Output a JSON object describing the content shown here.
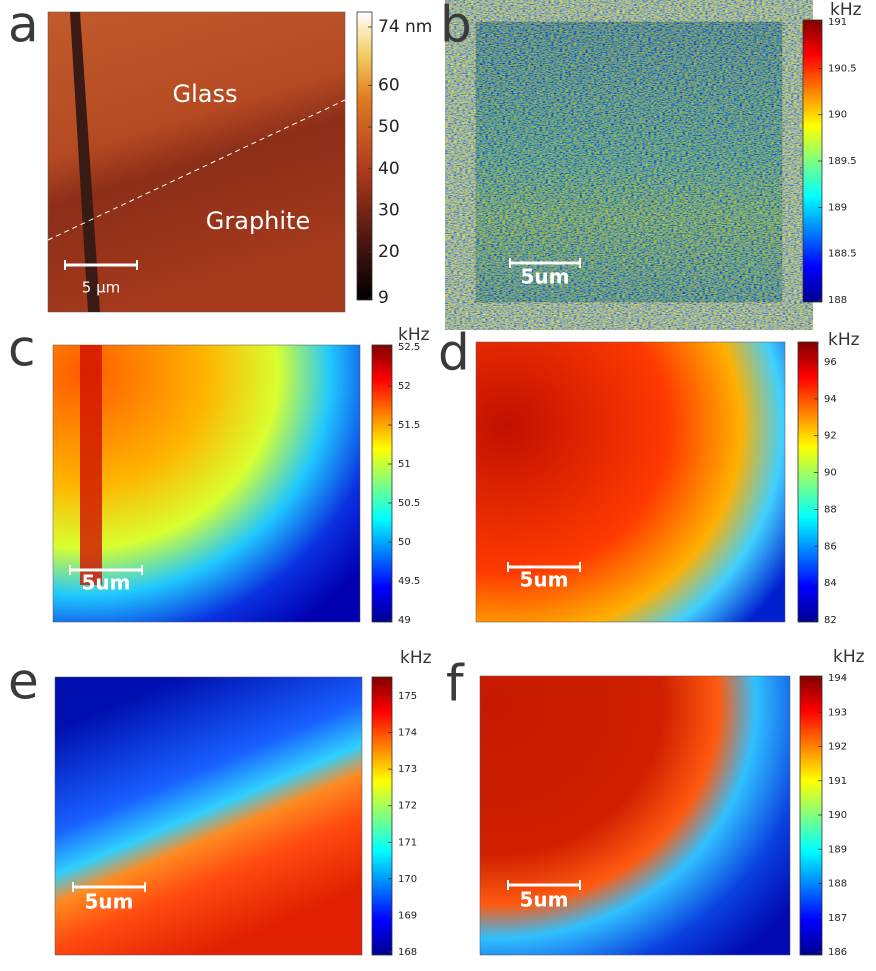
{
  "panels": [
    {
      "label": "a",
      "scalebar": "5 µm",
      "annotations": [
        "Glass",
        "Graphite"
      ],
      "colorbar_ticks": [
        {
          "value": 74,
          "label": "74 nm"
        },
        60,
        50,
        40,
        30,
        20,
        9
      ]
    },
    {
      "label": "b",
      "unit": "kHz",
      "scalebar": "5um",
      "colorbar_ticks": [
        191,
        190.5,
        190,
        189.5,
        189,
        188.5,
        188
      ]
    },
    {
      "label": "c",
      "unit": "kHz",
      "scalebar": "5um",
      "colorbar_ticks": [
        52.5,
        52,
        51.5,
        51,
        50.5,
        50,
        49.5,
        49
      ]
    },
    {
      "label": "d",
      "unit": "kHz",
      "scalebar": "5um",
      "colorbar_ticks": [
        96,
        94,
        92,
        90,
        88,
        86,
        84,
        82
      ]
    },
    {
      "label": "e",
      "unit": "kHz",
      "scalebar": "5um",
      "colorbar_ticks": [
        175,
        174,
        173,
        172,
        171,
        170,
        169,
        168
      ]
    },
    {
      "label": "f",
      "unit": "kHz",
      "scalebar": "5um",
      "colorbar_ticks": [
        194,
        193,
        192,
        191,
        190,
        189,
        188,
        187,
        186
      ]
    }
  ]
}
